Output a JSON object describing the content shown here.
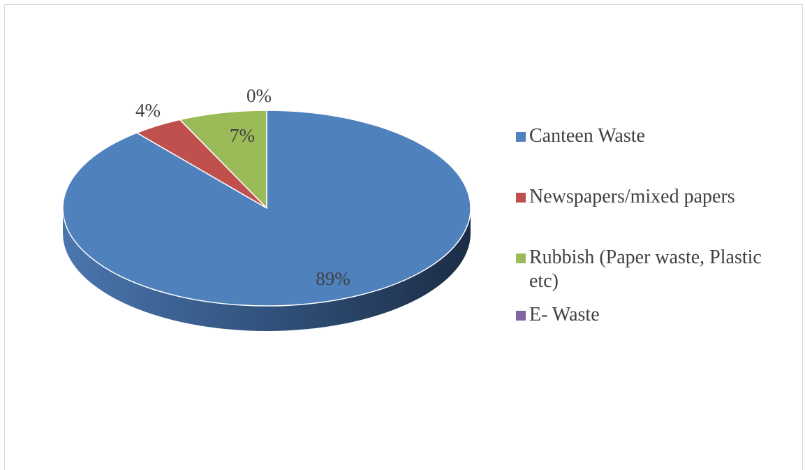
{
  "chart_data": {
    "type": "pie",
    "title": "",
    "legend_position": "right",
    "slices": [
      {
        "name": "Canteen Waste",
        "value": 89,
        "label": "89%",
        "color": "#4f81bd",
        "dark": "#1f3350"
      },
      {
        "name": "Newspapers/mixed papers",
        "value": 4,
        "label": "4%",
        "color": "#c0504d",
        "dark": "#6a2322"
      },
      {
        "name": "Rubbish (Paper waste, Plastic etc)",
        "value": 7,
        "label": "7%",
        "color": "#9bbb59",
        "dark": "#4f6326"
      },
      {
        "name": "E- Waste",
        "value": 0,
        "label": "0%",
        "color": "#8064a2",
        "dark": "#3d2c52"
      }
    ]
  }
}
